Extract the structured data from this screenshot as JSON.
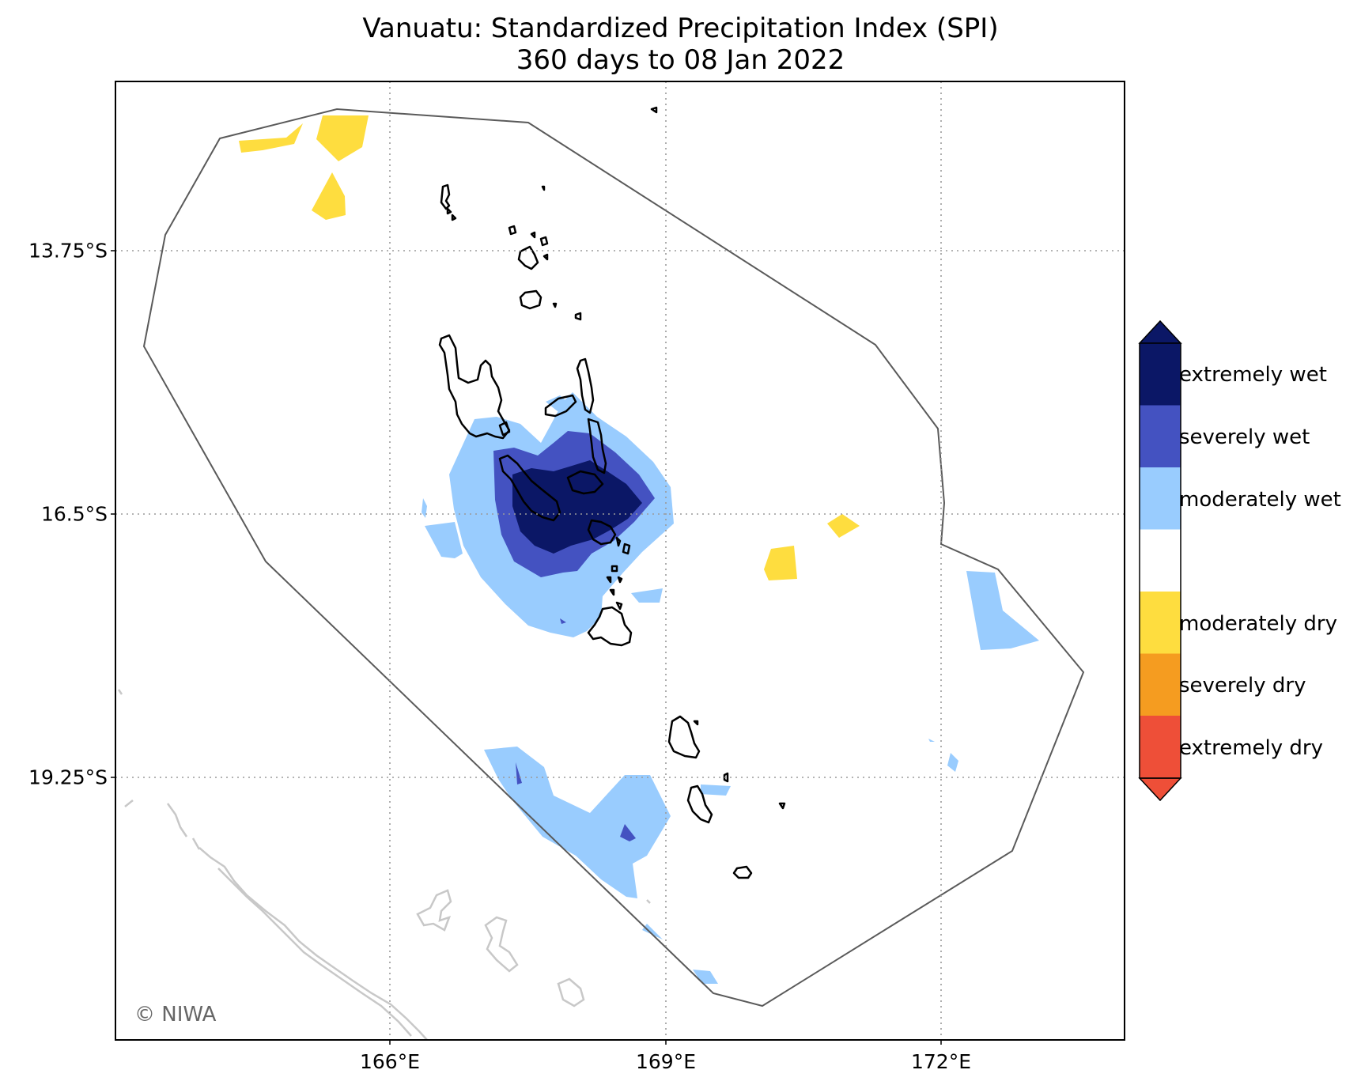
{
  "title": {
    "line1": "Vanuatu: Standardized Precipitation Index (SPI)",
    "line2": "360 days to 08 Jan 2022"
  },
  "axes": {
    "lat_labels": [
      "13.75°S",
      "16.5°S",
      "19.25°S"
    ],
    "lon_labels": [
      "166°E",
      "169°E",
      "172°E"
    ]
  },
  "legend": {
    "categories": [
      {
        "label": "extremely wet",
        "color": "#0b1766"
      },
      {
        "label": "severely wet",
        "color": "#4452c1"
      },
      {
        "label": "moderately wet",
        "color": "#99ccfe"
      },
      {
        "label": "",
        "color": "#ffffff"
      },
      {
        "label": "moderately dry",
        "color": "#fedd3f"
      },
      {
        "label": "severely dry",
        "color": "#f59c20"
      },
      {
        "label": "extremely dry",
        "color": "#ee4f38"
      }
    ]
  },
  "credit": "© NIWA",
  "colors": {
    "eez_line": "#5a5a5a",
    "coastline": "#000000",
    "neighbor_coast": "#c8c8c8",
    "grid": "#9a9a9a"
  }
}
